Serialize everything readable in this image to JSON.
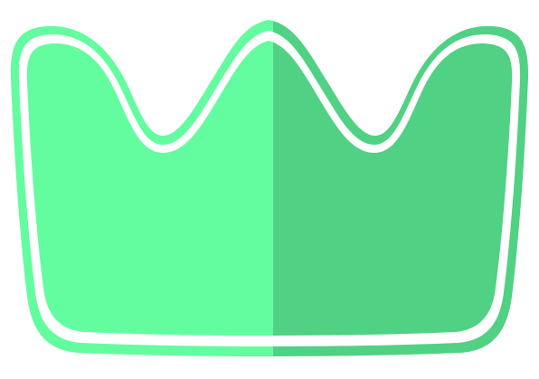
{
  "image": {
    "subject": "crown-icon",
    "colors": {
      "background": "#ffffff",
      "left_half": "#63FDA0",
      "right_half": "#50D183",
      "inner_outline": "#ffffff"
    }
  }
}
